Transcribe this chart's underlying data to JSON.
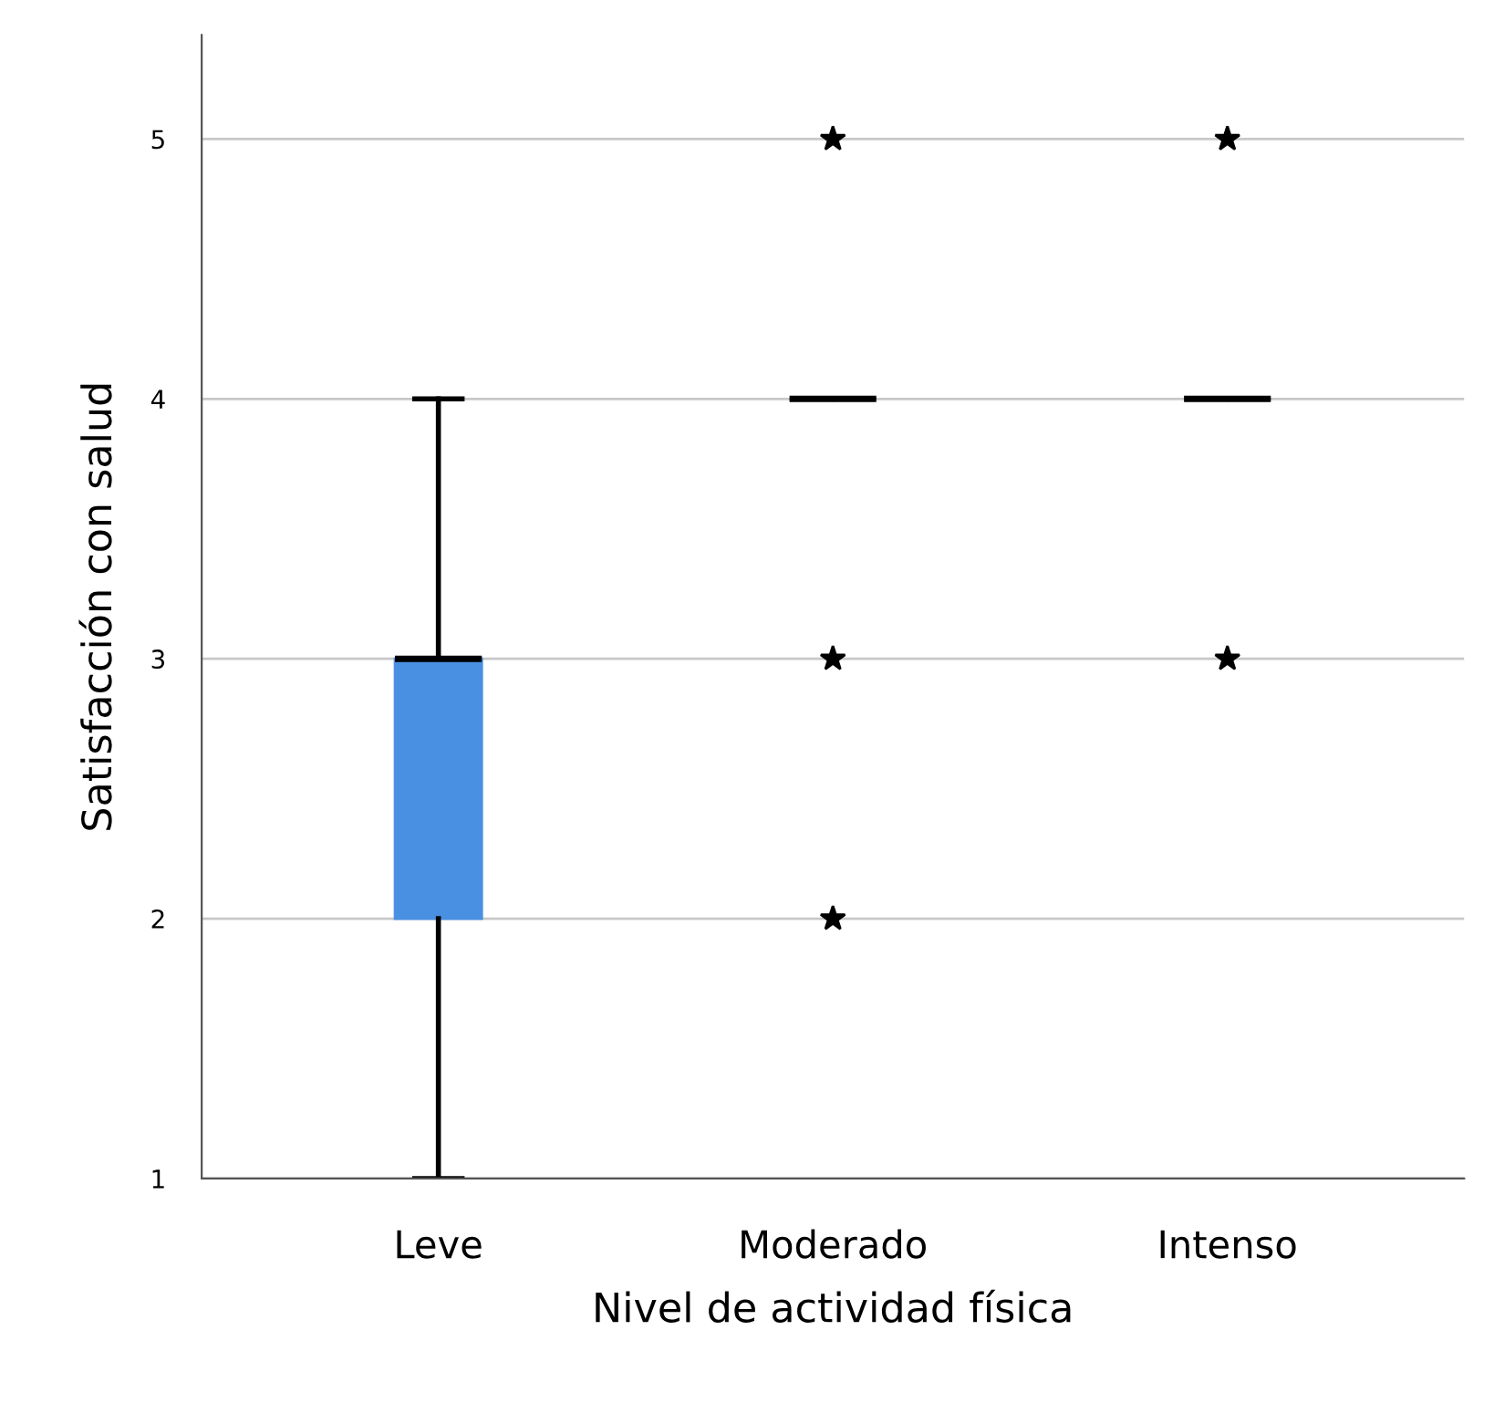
{
  "chart_data": {
    "type": "box",
    "xlabel": "Nivel de actividad física",
    "ylabel": "Satisfacción con salud",
    "categories": [
      "Leve",
      "Moderado",
      "Intenso"
    ],
    "boxes": [
      {
        "low": 1,
        "q1": 2,
        "median": 3,
        "q3": 3,
        "high": 4
      },
      {
        "low": 4,
        "q1": 4,
        "median": 4,
        "q3": 4,
        "high": 4,
        "outliers": [
          5,
          3,
          2
        ]
      },
      {
        "low": 4,
        "q1": 4,
        "median": 4,
        "q3": 4,
        "high": 4,
        "outliers": [
          5,
          3
        ]
      }
    ],
    "color": "#4a90e2",
    "ylim": [
      1,
      5.4
    ],
    "yticks": [
      1,
      2,
      3,
      4,
      5
    ],
    "grid": "y",
    "marker": "star",
    "legend": false
  }
}
